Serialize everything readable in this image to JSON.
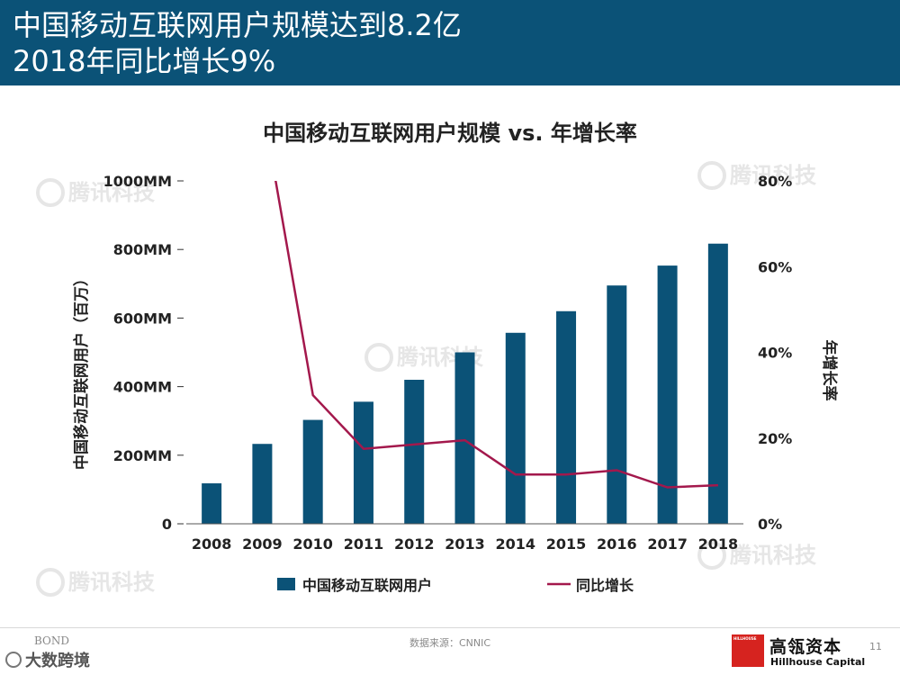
{
  "header": {
    "title_line1": "中国移动互联网用户规模达到8.2亿",
    "title_line2": "2018年同比增长9%"
  },
  "colors": {
    "header_bg": "#0b5277",
    "bar": "#0b5277",
    "line": "#a3184c",
    "watermark": "#e6e6e6"
  },
  "watermark": {
    "text": "腾讯科技",
    "icon": "tencent-tech-logo-icon"
  },
  "chart_data": {
    "type": "bar",
    "title": "中国移动互联网用户规模 vs. 年增长率",
    "categories": [
      "2008",
      "2009",
      "2010",
      "2011",
      "2012",
      "2013",
      "2014",
      "2015",
      "2016",
      "2017",
      "2018"
    ],
    "series": [
      {
        "name": "中国移动互联网用户",
        "type": "bar",
        "axis": "left",
        "values": [
          118,
          233,
          303,
          356,
          420,
          500,
          557,
          620,
          695,
          753,
          817
        ]
      },
      {
        "name": "同比增长",
        "type": "line",
        "axis": "right",
        "values": [
          null,
          98,
          30,
          17.5,
          18.5,
          19.5,
          11.5,
          11.5,
          12.5,
          8.5,
          9
        ]
      }
    ],
    "ylabel": "中国移动互联网用户（百万）",
    "ylabel_right": "年增长率",
    "ylim": [
      0,
      1000
    ],
    "ylim_right": [
      0,
      80
    ],
    "yticks": [
      "0",
      "200MM",
      "400MM",
      "600MM",
      "800MM",
      "1000MM"
    ],
    "yticks_right": [
      "0%",
      "20%",
      "40%",
      "60%",
      "80%"
    ],
    "legend_position": "bottom",
    "grid": false
  },
  "footer": {
    "source": "数据来源：CNNIC",
    "bond_label": "BOND",
    "bigdata_label": "大数跨境",
    "brand_box_label": "HILLHOUSE",
    "brand_cn": "高瓴资本",
    "brand_en": "Hillhouse Capital",
    "page_number": "11"
  }
}
